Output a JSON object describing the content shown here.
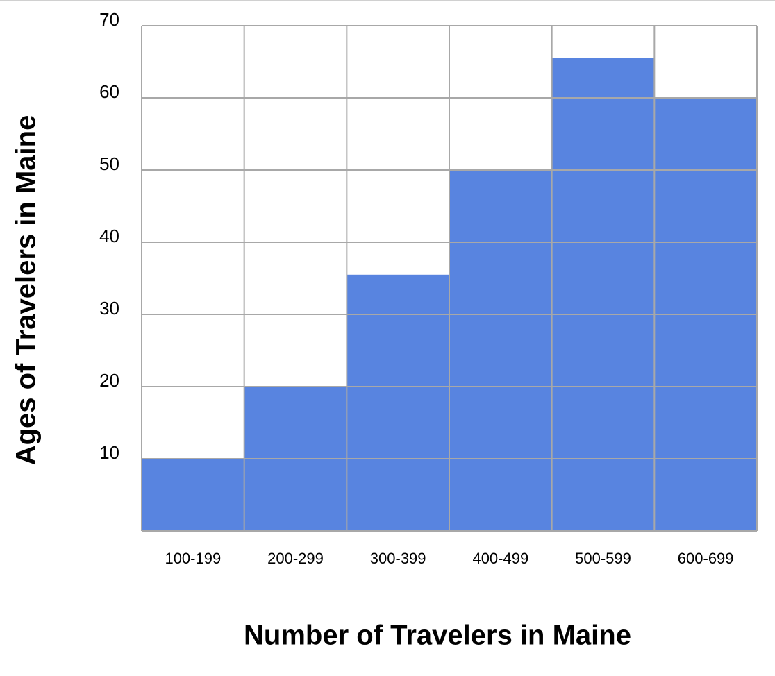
{
  "chart_data": {
    "type": "bar",
    "x_label": "Number of Travelers in Maine",
    "y_label": "Ages of Travelers in Maine",
    "categories": [
      "100-199",
      "200-299",
      "300-399",
      "400-499",
      "500-599",
      "600-699"
    ],
    "values": [
      10,
      20,
      35.5,
      50,
      65.5,
      60
    ],
    "color": "#5884e0",
    "ylim": [
      0,
      70
    ],
    "yticks": [
      10,
      20,
      30,
      40,
      50,
      60,
      70
    ],
    "grid": true
  }
}
